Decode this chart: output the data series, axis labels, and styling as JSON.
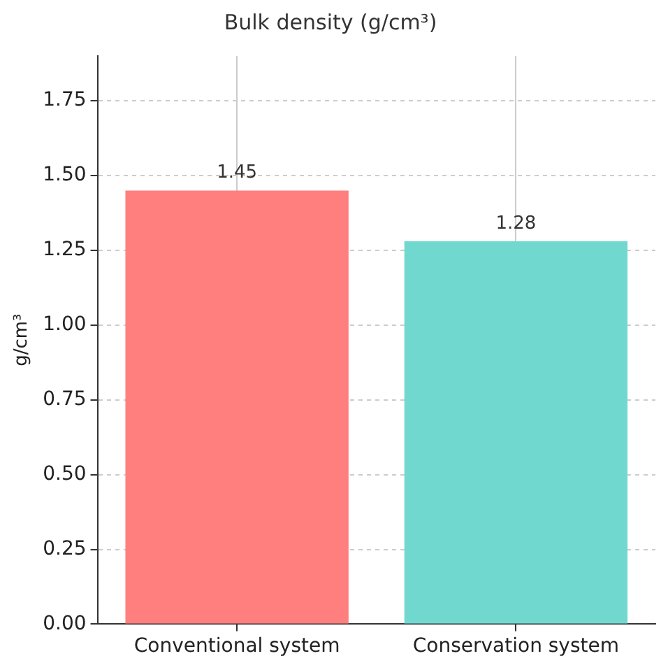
{
  "chart_data": {
    "type": "bar",
    "title": "Bulk density (g/cm³)",
    "ylabel": "g/cm³",
    "categories": [
      "Conventional system",
      "Conservation system"
    ],
    "values": [
      1.45,
      1.28
    ],
    "colors": [
      "#ff7f7f",
      "#70d8cf"
    ],
    "ylim": [
      0,
      1.9
    ],
    "yticks": [
      {
        "value": 0,
        "label": "0.00"
      },
      0.25,
      {
        "value": 0.5,
        "label": "0.50"
      },
      0.75,
      {
        "value": 1,
        "label": "1.00"
      },
      1.25,
      {
        "value": 1.5,
        "label": "1.50"
      },
      1.75
    ],
    "grid": true,
    "data_labels": true
  }
}
